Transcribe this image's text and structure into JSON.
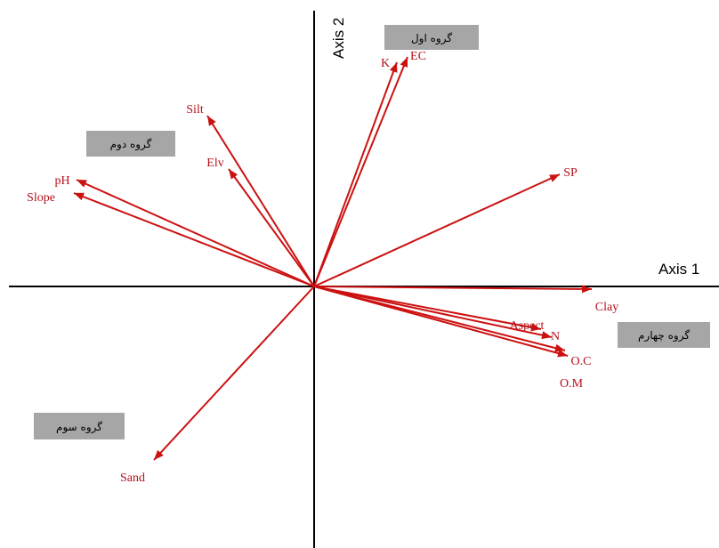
{
  "chart_data": {
    "type": "biplot",
    "axes": {
      "x_title": "Axis 1",
      "y_title": "Axis 2",
      "color": "#000000"
    },
    "vector_color": "#cc1111",
    "label_color": "#b5121b",
    "vectors": [
      {
        "name": "K",
        "x": 0.31,
        "y": 0.84
      },
      {
        "name": "EC",
        "x": 0.35,
        "y": 0.86
      },
      {
        "name": "Silt",
        "x": -0.4,
        "y": 0.64
      },
      {
        "name": "SP",
        "x": 0.92,
        "y": 0.42
      },
      {
        "name": "Elv",
        "x": -0.32,
        "y": 0.44
      },
      {
        "name": "pH",
        "x": -0.89,
        "y": 0.4
      },
      {
        "name": "Slope",
        "x": -0.9,
        "y": 0.35
      },
      {
        "name": "Clay",
        "x": 1.04,
        "y": -0.01
      },
      {
        "name": "Aspect",
        "x": 0.85,
        "y": -0.16
      },
      {
        "name": "N",
        "x": 0.89,
        "y": -0.19
      },
      {
        "name": "O.C",
        "x": 0.94,
        "y": -0.24
      },
      {
        "name": "O.M",
        "x": 0.95,
        "y": -0.26
      },
      {
        "name": "Sand",
        "x": -0.6,
        "y": -0.65
      }
    ],
    "groups": [
      {
        "label": "گروه اول"
      },
      {
        "label": "گروه دوم"
      },
      {
        "label": "گروه سوم"
      },
      {
        "label": "گروه چهارم"
      }
    ],
    "group_box_color": "#a6a6a6"
  }
}
